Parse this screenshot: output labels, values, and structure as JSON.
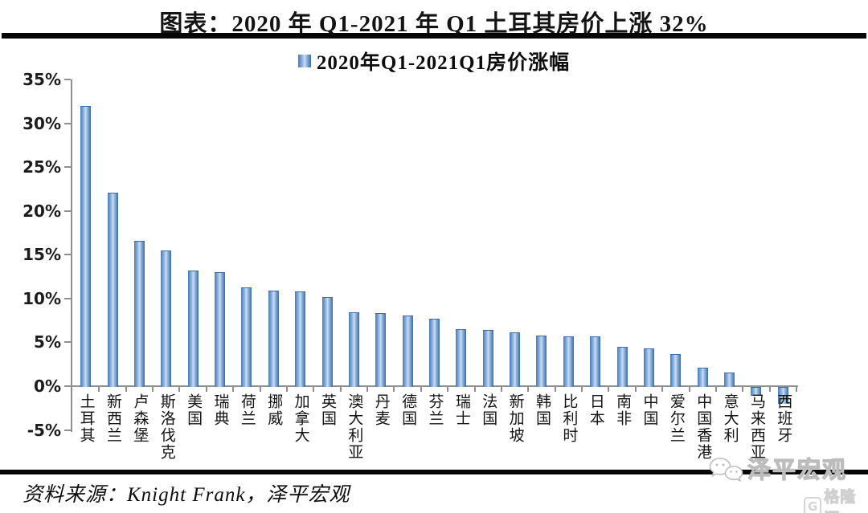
{
  "title": "图表：2020 年 Q1-2021 年 Q1 土耳其房价上涨 32%",
  "legend": {
    "label": "2020年Q1-2021Q1房价涨幅"
  },
  "chart_data": {
    "type": "bar",
    "title": "2020年Q1-2021Q1房价涨幅",
    "categories": [
      "土耳其",
      "新西兰",
      "卢森堡",
      "斯洛伐克",
      "美国",
      "瑞典",
      "荷兰",
      "挪威",
      "加拿大",
      "英国",
      "澳大利亚",
      "丹麦",
      "德国",
      "芬兰",
      "瑞士",
      "法国",
      "新加坡",
      "韩国",
      "比利时",
      "日本",
      "南非",
      "中国",
      "爱尔兰",
      "中国香港",
      "意大利",
      "马来西亚",
      "西班牙"
    ],
    "values": [
      32.0,
      22.1,
      16.6,
      15.5,
      13.2,
      13.0,
      11.3,
      10.9,
      10.8,
      10.2,
      8.4,
      8.3,
      8.1,
      7.7,
      6.5,
      6.4,
      6.1,
      5.8,
      5.7,
      5.7,
      4.5,
      4.3,
      3.7,
      2.1,
      1.6,
      -0.9,
      -1.8
    ],
    "xlabel": "",
    "ylabel": "",
    "ylim": [
      -5,
      35
    ],
    "ytick_step": 5,
    "ytick_labels": [
      "35%",
      "30%",
      "25%",
      "20%",
      "15%",
      "10%",
      "5%",
      "0%",
      "-5%"
    ],
    "grid": false,
    "legend_position": "top",
    "bar_color": "#4f81bd"
  },
  "footer": {
    "source": "资料来源：Knight Frank，泽平宏观"
  },
  "watermarks": {
    "brand": "泽平宏观",
    "publisher": "格隆汇"
  }
}
